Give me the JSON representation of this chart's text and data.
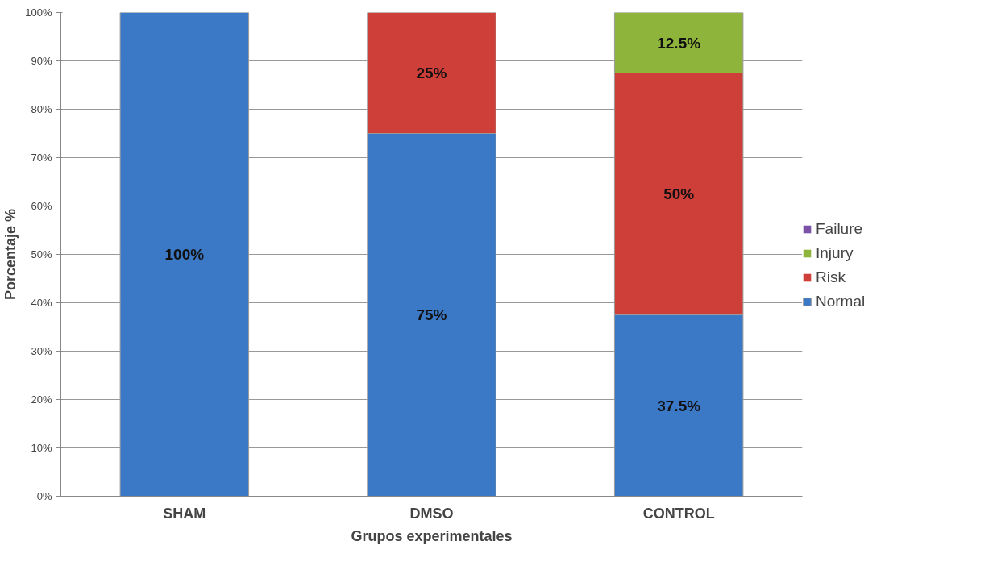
{
  "chart_data": {
    "type": "bar",
    "stacked": true,
    "xlabel": "Grupos experimentales",
    "ylabel": "Porcentaje %",
    "categories": [
      "SHAM",
      "DMSO",
      "CONTROL"
    ],
    "series": [
      {
        "name": "Normal",
        "color": "#3b78c6",
        "values": [
          100,
          75,
          37.5
        ],
        "value_labels": [
          "100%",
          "75%",
          "37.5%"
        ]
      },
      {
        "name": "Risk",
        "color": "#cf3f3a",
        "values": [
          0,
          25,
          50
        ],
        "value_labels": [
          null,
          "25%",
          "50%"
        ]
      },
      {
        "name": "Injury",
        "color": "#8fb43c",
        "values": [
          0,
          0,
          12.5
        ],
        "value_labels": [
          null,
          null,
          "12.5%"
        ]
      },
      {
        "name": "Failure",
        "color": "#7c52a8",
        "values": [
          0,
          0,
          0
        ],
        "value_labels": [
          null,
          null,
          null
        ]
      }
    ],
    "ylim": [
      0,
      100
    ],
    "yticks": [
      {
        "value": 0,
        "label": "0%"
      },
      {
        "value": 10,
        "label": "10%"
      },
      {
        "value": 20,
        "label": "20%"
      },
      {
        "value": 30,
        "label": "30%"
      },
      {
        "value": 40,
        "label": "40%"
      },
      {
        "value": 50,
        "label": "50%"
      },
      {
        "value": 60,
        "label": "60%"
      },
      {
        "value": 70,
        "label": "70%"
      },
      {
        "value": 80,
        "label": "80%"
      },
      {
        "value": 90,
        "label": "90%"
      },
      {
        "value": 100,
        "label": "100%"
      }
    ],
    "grid": "y",
    "legend": "right"
  }
}
